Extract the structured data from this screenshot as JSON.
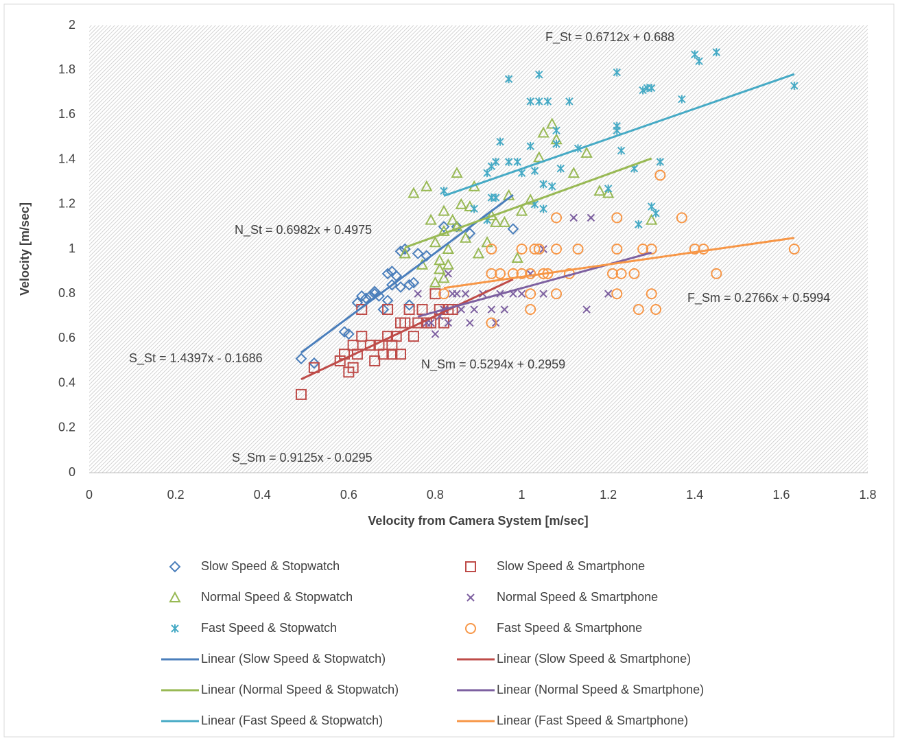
{
  "chart_data": {
    "type": "scatter",
    "xlabel": "Velocity from Camera System [m/sec]",
    "ylabel": "Velocity [m/sec]",
    "xlim": [
      0,
      1.8
    ],
    "ylim": [
      0,
      2
    ],
    "xticks": [
      0,
      0.2,
      0.4,
      0.6,
      0.8,
      1,
      1.2,
      1.4,
      1.6,
      1.8
    ],
    "yticks": [
      0,
      0.2,
      0.4,
      0.6,
      0.8,
      1,
      1.2,
      1.4,
      1.6,
      1.8,
      2
    ],
    "series": [
      {
        "name": "Slow Speed & Stopwatch",
        "color": "#4a7ebb",
        "marker": "diamond",
        "x": [
          0.49,
          0.52,
          0.59,
          0.6,
          0.62,
          0.63,
          0.65,
          0.66,
          0.67,
          0.68,
          0.69,
          0.69,
          0.7,
          0.7,
          0.71,
          0.72,
          0.73,
          0.72,
          0.74,
          0.75,
          0.76,
          0.78,
          0.74,
          0.82,
          0.85,
          0.88,
          0.98,
          0.66,
          0.64
        ],
        "values": [
          0.51,
          0.49,
          0.63,
          0.62,
          0.76,
          0.79,
          0.79,
          0.81,
          0.79,
          0.73,
          0.77,
          0.89,
          0.9,
          0.84,
          0.88,
          0.99,
          1.0,
          0.83,
          0.84,
          0.85,
          0.98,
          0.97,
          0.75,
          1.1,
          1.1,
          1.07,
          1.09,
          0.8,
          0.78
        ]
      },
      {
        "name": "Slow Speed & Smartphone",
        "color": "#be4b48",
        "marker": "square",
        "x": [
          0.49,
          0.52,
          0.58,
          0.59,
          0.6,
          0.61,
          0.61,
          0.62,
          0.63,
          0.63,
          0.65,
          0.66,
          0.67,
          0.68,
          0.69,
          0.7,
          0.7,
          0.71,
          0.72,
          0.72,
          0.73,
          0.74,
          0.75,
          0.76,
          0.77,
          0.78,
          0.79,
          0.8,
          0.81,
          0.82,
          0.83,
          0.84,
          0.69
        ],
        "values": [
          0.35,
          0.47,
          0.5,
          0.53,
          0.45,
          0.47,
          0.57,
          0.53,
          0.61,
          0.73,
          0.57,
          0.5,
          0.57,
          0.53,
          0.61,
          0.53,
          0.57,
          0.61,
          0.53,
          0.67,
          0.67,
          0.73,
          0.61,
          0.67,
          0.73,
          0.67,
          0.67,
          0.8,
          0.73,
          0.67,
          0.73,
          0.73,
          0.73
        ]
      },
      {
        "name": "Normal Speed & Stopwatch",
        "color": "#98b954",
        "marker": "triangle",
        "x": [
          0.75,
          0.73,
          0.77,
          0.78,
          0.79,
          0.8,
          0.8,
          0.81,
          0.82,
          0.82,
          0.83,
          0.83,
          0.84,
          0.85,
          0.85,
          0.86,
          0.87,
          0.88,
          0.89,
          0.9,
          0.92,
          0.93,
          0.94,
          0.96,
          0.97,
          0.99,
          1.0,
          1.02,
          1.04,
          1.05,
          1.07,
          1.08,
          1.12,
          1.15,
          1.18,
          1.2,
          1.3,
          0.82,
          0.81
        ],
        "values": [
          1.25,
          0.98,
          0.93,
          1.28,
          1.13,
          1.03,
          0.85,
          0.95,
          0.87,
          1.17,
          1.0,
          0.93,
          1.13,
          1.34,
          1.1,
          1.2,
          1.05,
          1.19,
          1.28,
          0.98,
          1.03,
          1.15,
          1.12,
          1.12,
          1.24,
          0.96,
          1.17,
          1.22,
          1.41,
          1.52,
          1.56,
          1.49,
          1.34,
          1.43,
          1.26,
          1.25,
          1.13,
          1.08,
          0.91
        ]
      },
      {
        "name": "Normal Speed & Smartphone",
        "color": "#7d60a0",
        "marker": "x",
        "x": [
          0.76,
          0.79,
          0.8,
          0.81,
          0.82,
          0.83,
          0.83,
          0.84,
          0.85,
          0.86,
          0.87,
          0.88,
          0.89,
          0.91,
          0.93,
          0.94,
          0.95,
          0.96,
          0.98,
          1.0,
          1.02,
          1.05,
          1.05,
          1.12,
          1.16,
          1.15,
          1.2,
          0.82,
          0.78
        ],
        "values": [
          0.8,
          0.67,
          0.62,
          0.7,
          0.73,
          0.89,
          0.67,
          0.8,
          0.8,
          0.73,
          0.8,
          0.67,
          0.73,
          0.8,
          0.73,
          0.67,
          0.8,
          0.73,
          0.8,
          0.8,
          0.89,
          0.8,
          1.0,
          1.14,
          1.14,
          0.73,
          0.8,
          0.73,
          0.67
        ]
      },
      {
        "name": "Fast Speed & Stopwatch",
        "color": "#46aac5",
        "marker": "asterisk",
        "x": [
          0.82,
          0.89,
          0.92,
          0.92,
          0.93,
          0.93,
          0.94,
          0.94,
          0.95,
          0.97,
          0.97,
          0.99,
          1.0,
          1.02,
          1.02,
          1.03,
          1.03,
          1.04,
          1.04,
          1.05,
          1.05,
          1.06,
          1.07,
          1.08,
          1.08,
          1.09,
          1.11,
          1.13,
          1.2,
          1.22,
          1.22,
          1.22,
          1.23,
          1.26,
          1.27,
          1.28,
          1.29,
          1.3,
          1.3,
          1.31,
          1.32,
          1.37,
          1.4,
          1.41,
          1.45,
          1.63
        ],
        "values": [
          1.26,
          1.18,
          1.34,
          1.13,
          1.23,
          1.37,
          1.39,
          1.23,
          1.48,
          1.39,
          1.76,
          1.39,
          1.34,
          1.46,
          1.66,
          1.2,
          1.35,
          1.66,
          1.78,
          1.18,
          1.29,
          1.66,
          1.28,
          1.53,
          1.47,
          1.36,
          1.66,
          1.45,
          1.27,
          1.55,
          1.53,
          1.79,
          1.44,
          1.36,
          1.11,
          1.71,
          1.72,
          1.72,
          1.19,
          1.16,
          1.39,
          1.67,
          1.87,
          1.84,
          1.88,
          1.73
        ]
      },
      {
        "name": "Fast Speed & Smartphone",
        "color": "#f79646",
        "marker": "circle",
        "x": [
          0.82,
          0.93,
          0.93,
          0.93,
          0.95,
          0.98,
          1.0,
          1.0,
          1.02,
          1.02,
          1.02,
          1.03,
          1.04,
          1.05,
          1.06,
          1.08,
          1.08,
          1.08,
          1.11,
          1.13,
          1.21,
          1.22,
          1.22,
          1.22,
          1.23,
          1.26,
          1.27,
          1.28,
          1.3,
          1.3,
          1.31,
          1.32,
          1.37,
          1.4,
          1.42,
          1.45,
          1.63
        ],
        "values": [
          0.8,
          0.67,
          0.89,
          1.0,
          0.89,
          0.89,
          1.0,
          0.89,
          0.89,
          0.73,
          0.8,
          1.0,
          1.0,
          0.89,
          0.89,
          1.0,
          1.14,
          0.8,
          0.89,
          1.0,
          0.89,
          1.0,
          1.14,
          0.8,
          0.89,
          0.89,
          0.73,
          1.0,
          1.0,
          0.8,
          0.73,
          1.33,
          1.14,
          1.0,
          1.0,
          0.89,
          1.0
        ]
      }
    ],
    "trendlines": [
      {
        "name": "Linear (Slow Speed & Stopwatch)",
        "color": "#4a7ebb",
        "x": [
          0.49,
          0.98
        ],
        "values": [
          0.537,
          1.242
        ]
      },
      {
        "name": "Linear (Slow Speed & Smartphone)",
        "color": "#be4b48",
        "x": [
          0.49,
          0.98
        ],
        "values": [
          0.418,
          0.865
        ]
      },
      {
        "name": "Linear (Normal Speed & Stopwatch)",
        "color": "#98b954",
        "x": [
          0.73,
          1.3
        ],
        "values": [
          1.007,
          1.405
        ]
      },
      {
        "name": "Linear (Normal Speed & Smartphone)",
        "color": "#7d60a0",
        "x": [
          0.76,
          1.3
        ],
        "values": [
          0.698,
          0.984
        ]
      },
      {
        "name": "Linear (Fast Speed & Stopwatch)",
        "color": "#46aac5",
        "x": [
          0.82,
          1.63
        ],
        "values": [
          1.238,
          1.782
        ]
      },
      {
        "name": "Linear (Fast Speed & Smartphone)",
        "color": "#f79646",
        "x": [
          0.82,
          1.63
        ],
        "values": [
          0.826,
          1.05
        ]
      }
    ],
    "annotations": [
      "F_St = 0.6712x + 0.688",
      "N_St = 0.6982x + 0.4975",
      "S_St = 1.4397x - 0.1686",
      "N_Sm = 0.5294x + 0.2959",
      "S_Sm = 0.9125x - 0.0295",
      "F_Sm = 0.2766x + 0.5994"
    ]
  }
}
